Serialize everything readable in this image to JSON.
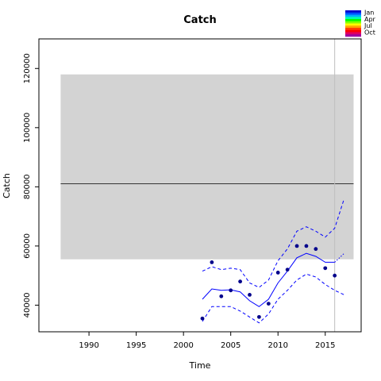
{
  "chart_data": {
    "type": "line",
    "title": "Catch",
    "xlabel": "Time",
    "ylabel": "Catch",
    "xlim": [
      1984.7,
      2018.8
    ],
    "ylim": [
      31000,
      130000
    ],
    "x_ticks": [
      1990,
      1995,
      2000,
      2005,
      2010,
      2015
    ],
    "y_ticks": [
      40000,
      60000,
      80000,
      100000,
      120000
    ],
    "grid": false,
    "band": {
      "x_start": 1987,
      "x_end": 2018,
      "y_low": 55500,
      "y_high": 118000,
      "color": "#d3d3d3"
    },
    "reference_line": {
      "y": 81000,
      "x_start": 1987,
      "x_end": 2018
    },
    "vertical_line": {
      "x": 2016,
      "color": "#bebebe"
    },
    "observed": {
      "x": [
        2002,
        2003,
        2004,
        2005,
        2006,
        2007,
        2008,
        2009,
        2010,
        2011,
        2012,
        2013,
        2014,
        2015,
        2016
      ],
      "y": [
        35500,
        54500,
        43000,
        45000,
        48000,
        43500,
        36000,
        40500,
        51000,
        52000,
        60000,
        60000,
        59000,
        52500,
        50000
      ]
    },
    "series": [
      {
        "x": [
          2002,
          2003,
          2004,
          2005,
          2006,
          2007,
          2008,
          2009,
          2010,
          2011,
          2012,
          2013,
          2014,
          2015,
          2016
        ],
        "y": [
          42000,
          45500,
          45000,
          45200,
          44500,
          41500,
          39500,
          42000,
          47500,
          51500,
          56000,
          57500,
          56500,
          54500,
          54500
        ],
        "style": "solid",
        "color": "#0000ff"
      },
      {
        "x": [
          2002,
          2003,
          2004,
          2005,
          2006,
          2007,
          2008,
          2009,
          2010,
          2011,
          2012,
          2013,
          2014,
          2015,
          2016,
          2017
        ],
        "y": [
          51500,
          53000,
          52000,
          52500,
          52000,
          47500,
          46000,
          48500,
          55000,
          59000,
          65000,
          66500,
          65000,
          63000,
          66000,
          76000
        ],
        "style": "dashed",
        "color": "#0000ff"
      },
      {
        "x": [
          2002,
          2003,
          2004,
          2005,
          2006,
          2007,
          2008,
          2009,
          2010,
          2011,
          2012,
          2013,
          2014,
          2015,
          2016,
          2017
        ],
        "y": [
          34500,
          39500,
          39500,
          39500,
          38000,
          36000,
          34000,
          37000,
          42000,
          45000,
          48500,
          50500,
          49500,
          47000,
          45000,
          43500
        ],
        "style": "dashed",
        "color": "#0000ff"
      },
      {
        "x": [
          2016,
          2017
        ],
        "y": [
          54500,
          57500
        ],
        "style": "dotted",
        "color": "#0000ff"
      }
    ],
    "legend": {
      "placement": "top-right",
      "labels": [
        "Jan",
        "Apr",
        "Jul",
        "Oct"
      ],
      "colors": [
        "#0000cd",
        "#0050ff",
        "#00b0ff",
        "#00ffb0",
        "#00ff00",
        "#80ff00",
        "#ffff00",
        "#ffa500",
        "#ff4000",
        "#ff0000",
        "#e00060",
        "#a000a0"
      ]
    }
  }
}
